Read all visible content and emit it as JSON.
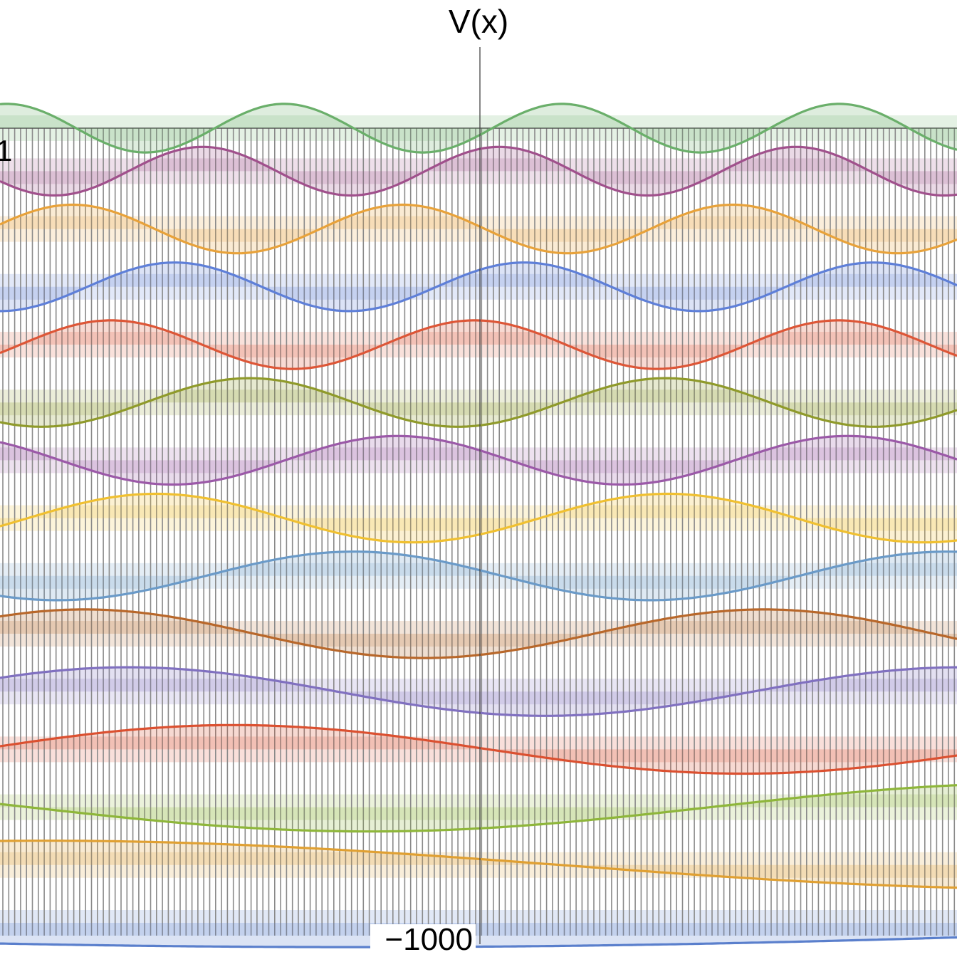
{
  "chart_data": {
    "type": "line",
    "ylabel": "V(x)",
    "tick_labels": {
      "top_left": "1",
      "bottom": "−1000"
    },
    "potential": {
      "well_count": 162,
      "top_level": 0,
      "bottom_level": -1000,
      "color": "#8a8a8a"
    },
    "x_range": [
      -1,
      1
    ],
    "series": [
      {
        "level": 15,
        "wavelength": 0.58,
        "phase": 0.95,
        "amplitude": 0.42,
        "color": "#6aaf6a"
      },
      {
        "level": 14,
        "wavelength": 0.62,
        "phase": 0.18,
        "amplitude": 0.42,
        "color": "#a0508c"
      },
      {
        "level": 13,
        "wavelength": 0.69,
        "phase": 0.48,
        "amplitude": 0.42,
        "color": "#e8a23a"
      },
      {
        "level": 12,
        "wavelength": 0.73,
        "phase": 0.12,
        "amplitude": 0.42,
        "color": "#5e7fd8"
      },
      {
        "level": 11,
        "wavelength": 0.76,
        "phase": 0.26,
        "amplitude": 0.42,
        "color": "#dd5637"
      },
      {
        "level": 10,
        "wavelength": 0.87,
        "phase": 0.8,
        "amplitude": 0.42,
        "color": "#8f9a2a"
      },
      {
        "level": 9,
        "wavelength": 0.94,
        "phase": 0.43,
        "amplitude": 0.42,
        "color": "#9b59a8"
      },
      {
        "level": 8,
        "wavelength": 1.07,
        "phase": 0.88,
        "amplitude": 0.42,
        "color": "#f0c030"
      },
      {
        "level": 7,
        "wavelength": 1.24,
        "phase": 0.46,
        "amplitude": 0.42,
        "color": "#6a9ac8"
      },
      {
        "level": 6,
        "wavelength": 1.42,
        "phase": 0.83,
        "amplitude": 0.42,
        "color": "#b8672a"
      },
      {
        "level": 5,
        "wavelength": 1.74,
        "phase": 0.67,
        "amplitude": 0.42,
        "color": "#8070c0"
      },
      {
        "level": 4,
        "wavelength": 2.13,
        "phase": 0.49,
        "amplitude": 0.42,
        "color": "#db5030"
      },
      {
        "level": 3,
        "wavelength": 2.85,
        "phase": 0.83,
        "amplitude": 0.42,
        "color": "#8eb63a"
      },
      {
        "level": 2,
        "wavelength": 4.3,
        "phase": 0.46,
        "amplitude": 0.42,
        "color": "#e0a032"
      },
      {
        "level": 1,
        "wavelength": 8.5,
        "phase": 0.78,
        "amplitude": 0.42,
        "color": "#5a7fcc"
      }
    ],
    "grid": false,
    "legend": "none"
  }
}
